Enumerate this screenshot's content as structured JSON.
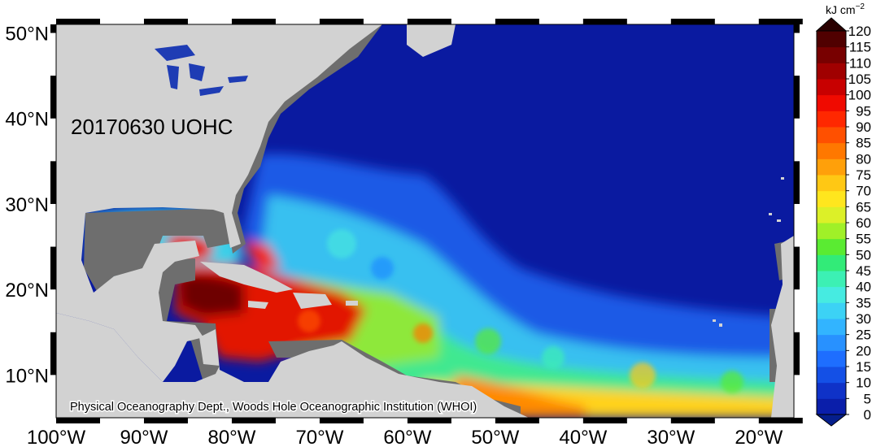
{
  "map": {
    "title": "20170630 UOHC",
    "credit": "Physical Oceanography Dept., Woods Hole Oceanographic Institution (WHOI)",
    "lon_labels": [
      "100°W",
      "90°W",
      "80°W",
      "70°W",
      "60°W",
      "50°W",
      "40°W",
      "30°W",
      "20°W"
    ],
    "lat_labels": [
      "10°N",
      "20°N",
      "30°N",
      "40°N",
      "50°N"
    ],
    "colors": {
      "land": "#d2d2d2",
      "shelf": "#6e6e6e",
      "ocean_deep": "#0a1aa0"
    }
  },
  "colorbar": {
    "unit": "kJ cm",
    "unit_exp": "−2",
    "tick_labels": [
      "0",
      "5",
      "10",
      "15",
      "20",
      "25",
      "30",
      "35",
      "40",
      "45",
      "50",
      "55",
      "60",
      "65",
      "70",
      "75",
      "80",
      "85",
      "90",
      "95",
      "100",
      "105",
      "110",
      "115",
      "120"
    ],
    "colors": [
      "#050f8c",
      "#0a1eaa",
      "#0f32c8",
      "#1450e6",
      "#1e6eff",
      "#2891ff",
      "#32b4ff",
      "#3cd2f5",
      "#46ebe1",
      "#3cf0b4",
      "#32eb78",
      "#5aeb32",
      "#a0f028",
      "#dcf028",
      "#ffe61e",
      "#ffc814",
      "#ffa00a",
      "#ff7800",
      "#ff5000",
      "#ff2800",
      "#f00a00",
      "#c80000",
      "#a00000",
      "#780000",
      "#500000"
    ]
  }
}
